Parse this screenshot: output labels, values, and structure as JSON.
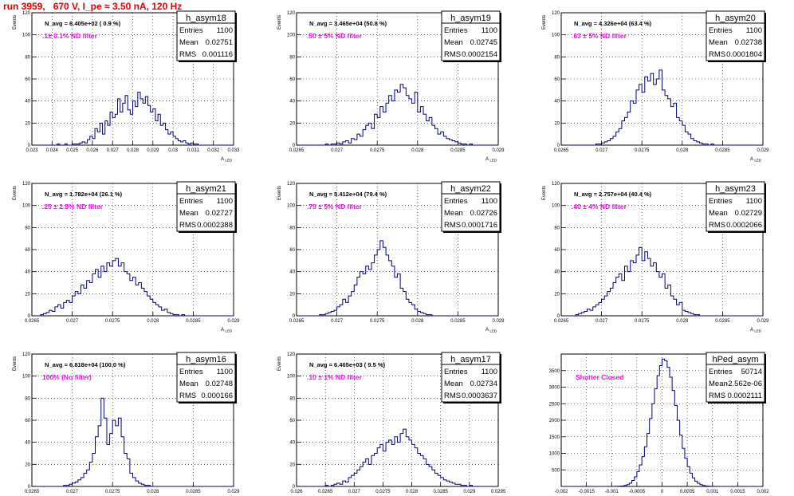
{
  "page_title": "run 3959,   670 V, I_pe ≈ 3.50 nA, 120 Hz",
  "colors": {
    "title": "#e00000",
    "annotation": "#ff00ff",
    "histogram": "#000080",
    "grid": "#000000"
  },
  "chart_data": [
    {
      "type": "histogram",
      "name": "h_asym18",
      "ylabel": "Events",
      "xlabel": "A_LED",
      "navg": "N_avg = 6.405e+02 ( 0.9 %)",
      "filter": ".1± 0.1% ND filter",
      "stats": {
        "entries": "1100",
        "mean": "0.02751",
        "rms": "0.001116"
      },
      "xlim": [
        0.023,
        0.033
      ],
      "ylim": [
        0,
        120
      ],
      "xticks": [
        "0.023",
        "0.024",
        "0.025",
        "0.026",
        "0.027",
        "0.028",
        "0.029",
        "0.03",
        "0.031",
        "0.032",
        "0.033"
      ],
      "yticks": [
        "0",
        "20",
        "40",
        "60",
        "80",
        "100",
        "120"
      ],
      "grid": true,
      "counts": [
        0,
        0,
        0,
        0,
        0,
        0,
        0,
        0,
        0,
        0,
        1,
        0,
        0,
        1,
        0,
        0,
        1,
        1,
        1,
        2,
        3,
        2,
        5,
        8,
        6,
        15,
        12,
        20,
        10,
        22,
        18,
        30,
        25,
        28,
        42,
        30,
        38,
        45,
        32,
        28,
        40,
        35,
        48,
        42,
        38,
        44,
        36,
        30,
        33,
        22,
        28,
        18,
        20,
        14,
        10,
        12,
        8,
        6,
        4,
        3,
        4,
        2,
        1,
        2,
        1,
        1,
        0,
        0,
        0,
        0,
        0,
        0,
        0,
        0,
        0,
        0,
        0,
        0,
        0,
        0
      ]
    },
    {
      "type": "histogram",
      "name": "h_asym19",
      "ylabel": "Events",
      "xlabel": "A_LED",
      "navg": "N_avg = 3.465e+04 (50.8 %)",
      "filter": ".50 ± 5% ND filter",
      "stats": {
        "entries": "1100",
        "mean": "0.02745",
        "rms": "0.0002154"
      },
      "xlim": [
        0.0265,
        0.029
      ],
      "ylim": [
        0,
        120
      ],
      "xticks": [
        "0.0265",
        "0.027",
        "0.0275",
        "0.028",
        "0.0285",
        "0.029"
      ],
      "yticks": [
        "0",
        "20",
        "40",
        "60",
        "80",
        "100",
        "120"
      ],
      "grid": true,
      "counts": [
        0,
        0,
        0,
        0,
        0,
        0,
        0,
        0,
        0,
        0,
        1,
        0,
        1,
        1,
        2,
        1,
        3,
        4,
        2,
        6,
        5,
        10,
        8,
        14,
        18,
        20,
        15,
        28,
        25,
        35,
        30,
        38,
        45,
        40,
        50,
        48,
        55,
        52,
        45,
        42,
        38,
        48,
        30,
        35,
        28,
        22,
        25,
        18,
        15,
        10,
        12,
        8,
        6,
        5,
        4,
        3,
        2,
        1,
        1,
        0,
        1,
        0,
        0,
        0,
        0,
        0,
        0,
        0,
        0,
        0
      ]
    },
    {
      "type": "histogram",
      "name": "h_asym20",
      "ylabel": "Events",
      "xlabel": "A_LED",
      "navg": "N_avg = 4.326e+04 (63.4 %)",
      "filter": ".63 ± 5% ND filter",
      "stats": {
        "entries": "1100",
        "mean": "0.02738",
        "rms": "0.0001804"
      },
      "xlim": [
        0.0265,
        0.029
      ],
      "ylim": [
        0,
        120
      ],
      "xticks": [
        "0.0265",
        "0.027",
        "0.0275",
        "0.028",
        "0.0285",
        "0.029"
      ],
      "yticks": [
        "0",
        "20",
        "40",
        "60",
        "80",
        "100",
        "120"
      ],
      "grid": true,
      "counts": [
        0,
        0,
        0,
        0,
        0,
        0,
        0,
        0,
        0,
        0,
        0,
        0,
        1,
        1,
        2,
        3,
        4,
        6,
        8,
        12,
        15,
        22,
        25,
        30,
        40,
        38,
        50,
        55,
        48,
        62,
        58,
        65,
        55,
        60,
        68,
        50,
        45,
        42,
        35,
        38,
        25,
        22,
        18,
        12,
        10,
        6,
        4,
        3,
        2,
        1,
        1,
        0,
        1,
        0,
        0,
        0,
        0,
        0,
        0,
        0,
        0,
        0,
        0,
        0,
        0,
        0,
        0,
        0,
        0,
        0
      ]
    },
    {
      "type": "histogram",
      "name": "h_asym21",
      "ylabel": "Events",
      "xlabel": "A_LED",
      "navg": "N_avg = 1.782e+04 (26.1 %)",
      "filter": ".25 ± 2.5% ND filter",
      "stats": {
        "entries": "1100",
        "mean": "0.02727",
        "rms": "0.0002388"
      },
      "xlim": [
        0.0265,
        0.029
      ],
      "ylim": [
        0,
        120
      ],
      "xticks": [
        "0.0265",
        "0.027",
        "0.0275",
        "0.028",
        "0.0285",
        "0.029"
      ],
      "yticks": [
        "0",
        "20",
        "40",
        "60",
        "80",
        "100",
        "120"
      ],
      "grid": true,
      "counts": [
        0,
        0,
        0,
        1,
        2,
        3,
        5,
        4,
        8,
        10,
        7,
        12,
        14,
        12,
        18,
        22,
        20,
        28,
        25,
        32,
        30,
        38,
        42,
        35,
        45,
        40,
        48,
        45,
        50,
        52,
        45,
        48,
        40,
        38,
        32,
        35,
        28,
        30,
        25,
        22,
        18,
        15,
        12,
        10,
        8,
        5,
        6,
        3,
        2,
        1,
        1,
        0,
        1,
        0,
        0,
        0,
        0,
        0,
        0,
        0,
        0,
        0,
        0,
        0,
        0,
        0,
        0,
        0,
        0,
        0
      ]
    },
    {
      "type": "histogram",
      "name": "h_asym22",
      "ylabel": "Events",
      "xlabel": "A_LED",
      "navg": "N_avg = 5.412e+04 (79.4 %)",
      "filter": ".79 ± 5% ND filter",
      "stats": {
        "entries": "1100",
        "mean": "0.02726",
        "rms": "0.0001716"
      },
      "xlim": [
        0.0265,
        0.029
      ],
      "ylim": [
        0,
        120
      ],
      "xticks": [
        "0.0265",
        "0.027",
        "0.0275",
        "0.028",
        "0.0285",
        "0.029"
      ],
      "yticks": [
        "0",
        "20",
        "40",
        "60",
        "80",
        "100",
        "120"
      ],
      "grid": true,
      "counts": [
        0,
        0,
        0,
        0,
        0,
        0,
        0,
        0,
        1,
        1,
        2,
        3,
        4,
        5,
        8,
        10,
        15,
        12,
        18,
        22,
        28,
        35,
        40,
        38,
        45,
        42,
        48,
        55,
        60,
        68,
        62,
        55,
        50,
        45,
        35,
        38,
        25,
        22,
        15,
        12,
        10,
        6,
        4,
        3,
        2,
        1,
        1,
        0,
        0,
        0,
        0,
        0,
        0,
        0,
        0,
        0,
        0,
        0,
        0,
        0,
        0,
        0,
        0,
        0,
        0,
        0,
        0,
        0,
        0,
        0
      ]
    },
    {
      "type": "histogram",
      "name": "h_asym23",
      "ylabel": "Events",
      "xlabel": "A_LED",
      "navg": "N_avg = 2.757e+04 (40.4 %)",
      "filter": ".40 ± 4% ND filter",
      "stats": {
        "entries": "1100",
        "mean": "0.02729",
        "rms": "0.0002066"
      },
      "xlim": [
        0.0265,
        0.029
      ],
      "ylim": [
        0,
        120
      ],
      "xticks": [
        "0.0265",
        "0.027",
        "0.0275",
        "0.028",
        "0.0285",
        "0.029"
      ],
      "yticks": [
        "0",
        "20",
        "40",
        "60",
        "80",
        "100",
        "120"
      ],
      "grid": true,
      "counts": [
        0,
        0,
        0,
        0,
        0,
        1,
        2,
        3,
        4,
        6,
        5,
        8,
        10,
        12,
        15,
        18,
        22,
        25,
        30,
        35,
        38,
        32,
        45,
        40,
        50,
        48,
        55,
        62,
        50,
        58,
        52,
        45,
        48,
        40,
        35,
        38,
        25,
        28,
        18,
        15,
        10,
        12,
        5,
        4,
        3,
        2,
        1,
        1,
        0,
        0,
        0,
        0,
        0,
        0,
        0,
        0,
        0,
        0,
        0,
        0,
        0,
        0,
        0,
        0,
        0,
        0,
        0,
        0,
        0,
        0
      ]
    },
    {
      "type": "histogram",
      "name": "h_asym16",
      "ylabel": "Events",
      "xlabel": "A_LED",
      "navg": "N_avg = 6.818e+04 (100.0 %)",
      "filter": "100% (No filter)",
      "stats": {
        "entries": "1100",
        "mean": "0.02748",
        "rms": "0.000166"
      },
      "xlim": [
        0.0265,
        0.029
      ],
      "ylim": [
        0,
        120
      ],
      "xticks": [
        "0.0265",
        "0.027",
        "0.0275",
        "0.028",
        "0.0285",
        "0.029"
      ],
      "yticks": [
        "0",
        "20",
        "40",
        "60",
        "80",
        "100",
        "120"
      ],
      "grid": true,
      "counts": [
        0,
        0,
        0,
        0,
        0,
        0,
        0,
        0,
        0,
        0,
        0,
        1,
        1,
        2,
        3,
        4,
        6,
        8,
        12,
        15,
        22,
        30,
        45,
        55,
        80,
        62,
        38,
        48,
        60,
        55,
        62,
        45,
        30,
        25,
        12,
        8,
        5,
        3,
        2,
        1,
        1,
        0,
        0,
        0,
        0,
        0,
        0,
        0,
        0,
        0,
        0,
        0,
        0,
        0,
        0,
        0,
        0,
        0,
        0,
        0,
        0,
        0,
        0,
        0,
        0,
        0,
        0,
        0,
        0,
        0
      ]
    },
    {
      "type": "histogram",
      "name": "h_asym17",
      "ylabel": "Events",
      "xlabel": "A_LED",
      "navg": "N_avg = 6.465e+03 ( 9.5 %)",
      "filter": ".10 ± 1% ND filter",
      "stats": {
        "entries": "1100",
        "mean": "0.02734",
        "rms": "0.0003637"
      },
      "xlim": [
        0.026,
        0.0295
      ],
      "ylim": [
        0,
        120
      ],
      "xticks": [
        "0.026",
        "0.0265",
        "0.027",
        "0.0275",
        "0.028",
        "0.0285",
        "0.029",
        "0.0295"
      ],
      "yticks": [
        "0",
        "20",
        "40",
        "60",
        "80",
        "100",
        "120"
      ],
      "grid": true,
      "counts": [
        0,
        0,
        0,
        0,
        0,
        0,
        0,
        0,
        0,
        0,
        1,
        0,
        1,
        2,
        3,
        2,
        5,
        4,
        8,
        10,
        12,
        15,
        18,
        22,
        25,
        20,
        28,
        30,
        35,
        38,
        32,
        40,
        42,
        38,
        45,
        40,
        48,
        52,
        45,
        42,
        38,
        35,
        30,
        28,
        25,
        20,
        18,
        15,
        12,
        10,
        8,
        6,
        5,
        4,
        3,
        2,
        2,
        1,
        1,
        0,
        1,
        0,
        0,
        0,
        0,
        0,
        0,
        0,
        0,
        0
      ]
    },
    {
      "type": "histogram",
      "name": "hPed_asym",
      "ylabel": "",
      "xlabel": "",
      "navg": "",
      "filter": "Shutter Closed",
      "stats": {
        "entries": "50714",
        "mean": "-2.562e-06",
        "rms": "0.0002111"
      },
      "xlim": [
        -0.002,
        0.002
      ],
      "ylim": [
        0,
        4000
      ],
      "xticks": [
        "-0.002",
        "-0.0015",
        "-0.001",
        "-0.0005",
        "0",
        "0.0005",
        "0.001",
        "0.0015",
        "0.002"
      ],
      "yticks": [
        "500",
        "1000",
        "1500",
        "2000",
        "2500",
        "3000",
        "3500"
      ],
      "grid": true,
      "counts": [
        0,
        0,
        0,
        0,
        0,
        0,
        0,
        0,
        0,
        0,
        0,
        0,
        0,
        0,
        0,
        0,
        0,
        0,
        0,
        0,
        1,
        2,
        4,
        8,
        15,
        30,
        55,
        100,
        180,
        290,
        450,
        650,
        900,
        1200,
        1600,
        2050,
        2500,
        2950,
        3350,
        3650,
        3850,
        3800,
        3600,
        3300,
        2900,
        2450,
        2000,
        1550,
        1150,
        850,
        600,
        400,
        260,
        160,
        95,
        55,
        30,
        15,
        8,
        4,
        2,
        1,
        0,
        0,
        0,
        0,
        0,
        0,
        0,
        0,
        0,
        0,
        0,
        0,
        0,
        0,
        0,
        0,
        0,
        0
      ]
    }
  ]
}
